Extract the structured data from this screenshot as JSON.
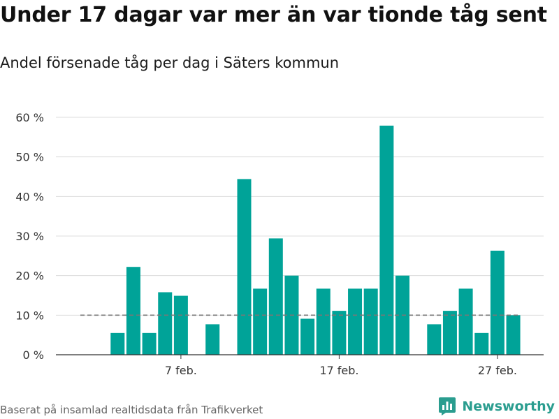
{
  "title": "Under 17 dagar var mer än var tionde tåg sent",
  "subtitle": "Andel försenade tåg per dag i Säters kommun",
  "footer": {
    "source": "Baserat på insamlad realtidsdata från Trafikverket",
    "brand": "Newsworthy",
    "brand_icon": "bar-chart-logo-icon"
  },
  "colors": {
    "bar": "#00a398",
    "grid": "#dcdcdc",
    "reference_line": "#777777",
    "axis": "#333333",
    "brand": "#2a9d8f"
  },
  "chart_data": {
    "type": "bar",
    "x": [
      "1 feb.",
      "2 feb.",
      "3 feb.",
      "4 feb.",
      "5 feb.",
      "6 feb.",
      "7 feb.",
      "8 feb.",
      "9 feb.",
      "10 feb.",
      "11 feb.",
      "12 feb.",
      "13 feb.",
      "14 feb.",
      "15 feb.",
      "16 feb.",
      "17 feb.",
      "18 feb.",
      "19 feb.",
      "20 feb.",
      "21 feb.",
      "22 feb.",
      "23 feb.",
      "24 feb.",
      "25 feb.",
      "26 feb.",
      "27 feb.",
      "28 feb."
    ],
    "values": [
      null,
      null,
      5.5,
      22.2,
      5.5,
      15.8,
      14.9,
      null,
      7.7,
      null,
      44.4,
      16.7,
      29.4,
      20.0,
      9.1,
      16.7,
      11.1,
      16.7,
      16.7,
      57.9,
      20.0,
      null,
      7.7,
      11.1,
      16.7,
      5.5,
      26.3,
      10.0
    ],
    "reference_value": 10,
    "x_ticks": [
      {
        "index": 6,
        "label": "7 feb."
      },
      {
        "index": 16,
        "label": "17 feb."
      },
      {
        "index": 26,
        "label": "27 feb."
      }
    ],
    "y_ticks": [
      0,
      10,
      20,
      30,
      40,
      50,
      60
    ],
    "y_tick_labels": [
      "0 %",
      "10 %",
      "20 %",
      "30 %",
      "40 %",
      "50 %",
      "60 %"
    ],
    "ylim": [
      0,
      60
    ],
    "grid": true,
    "legend": "none"
  }
}
